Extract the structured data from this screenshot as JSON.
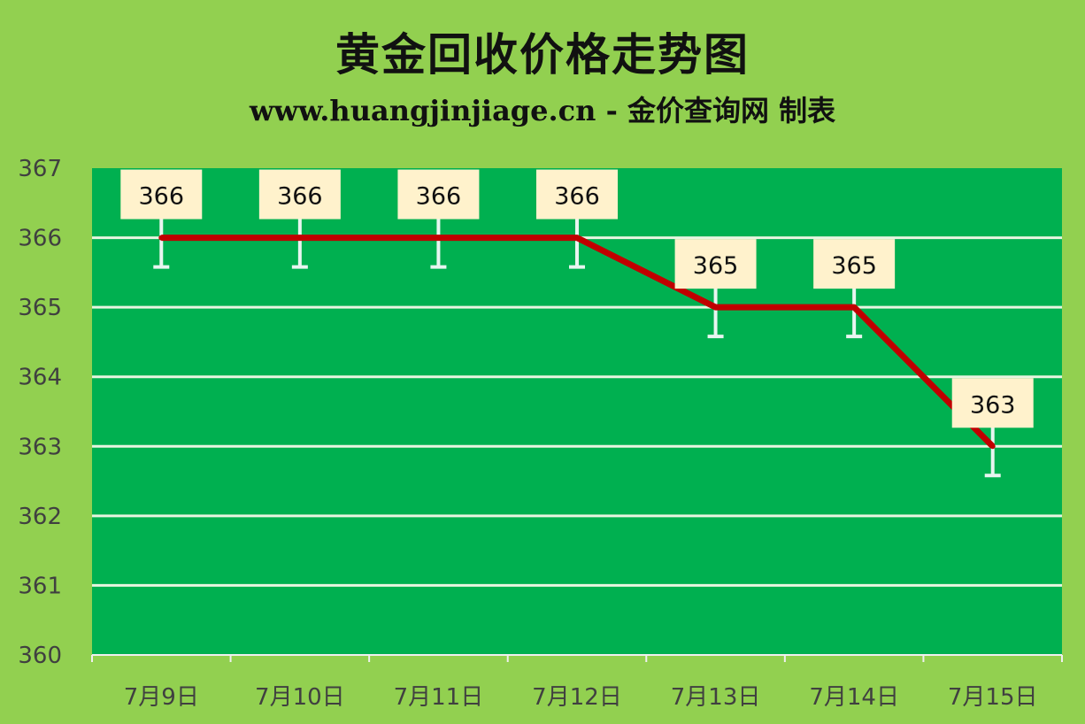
{
  "title": "黄金回收价格走势图",
  "subtitle": "www.huangjinjiage.cn - 金价查询网 制表",
  "colors": {
    "background": "#92D050",
    "plot_area": "#00B050",
    "line": "#C00000",
    "gridline": "#E8F5E0",
    "label_box": "#FFF2CC"
  },
  "chart_data": {
    "type": "line",
    "title": "黄金回收价格走势图",
    "subtitle": "www.huangjinjiage.cn - 金价查询网 制表",
    "categories": [
      "7月9日",
      "7月10日",
      "7月11日",
      "7月12日",
      "7月13日",
      "7月14日",
      "7月15日"
    ],
    "values": [
      366,
      366,
      366,
      366,
      365,
      365,
      363
    ],
    "data_labels": [
      "366",
      "366",
      "366",
      "366",
      "365",
      "365",
      "363"
    ],
    "ylim": [
      360,
      367
    ],
    "yticks": [
      "360",
      "361",
      "362",
      "363",
      "364",
      "365",
      "366",
      "367"
    ],
    "grid": true,
    "error_bars": true,
    "legend": "none"
  }
}
